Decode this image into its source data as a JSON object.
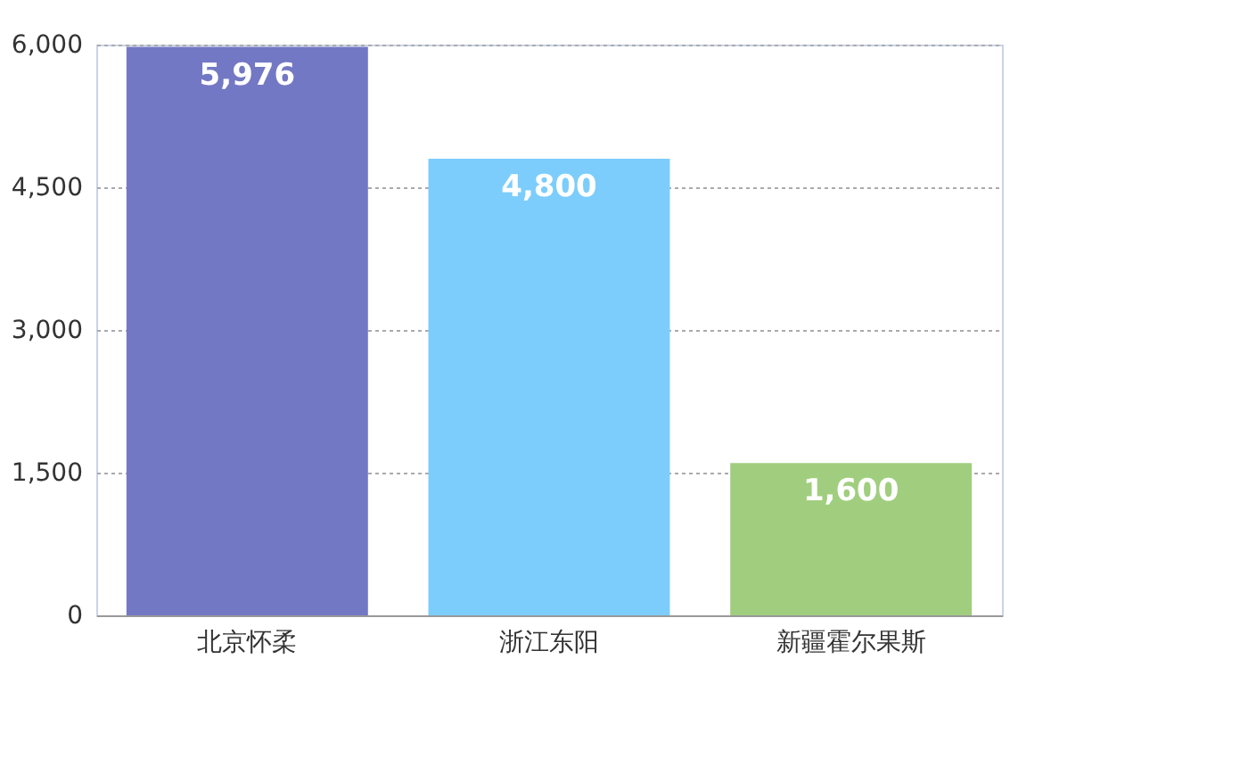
{
  "chart_data": {
    "type": "bar",
    "categories": [
      "北京怀柔",
      "浙江东阳",
      "新疆霍尔果斯"
    ],
    "values": [
      5976,
      4800,
      1600
    ],
    "value_labels": [
      "5,976",
      "4,800",
      "1,600"
    ],
    "colors": [
      "#7378c4",
      "#7ccdfb",
      "#a0ce7e"
    ],
    "ylim": [
      0,
      6000
    ],
    "yticks": [
      {
        "value": 0,
        "label": "0"
      },
      {
        "value": 1500,
        "label": "1,500"
      },
      {
        "value": 3000,
        "label": "3,000"
      },
      {
        "value": 4500,
        "label": "4,500"
      },
      {
        "value": 6000,
        "label": "6,000"
      }
    ],
    "grid": "y"
  }
}
